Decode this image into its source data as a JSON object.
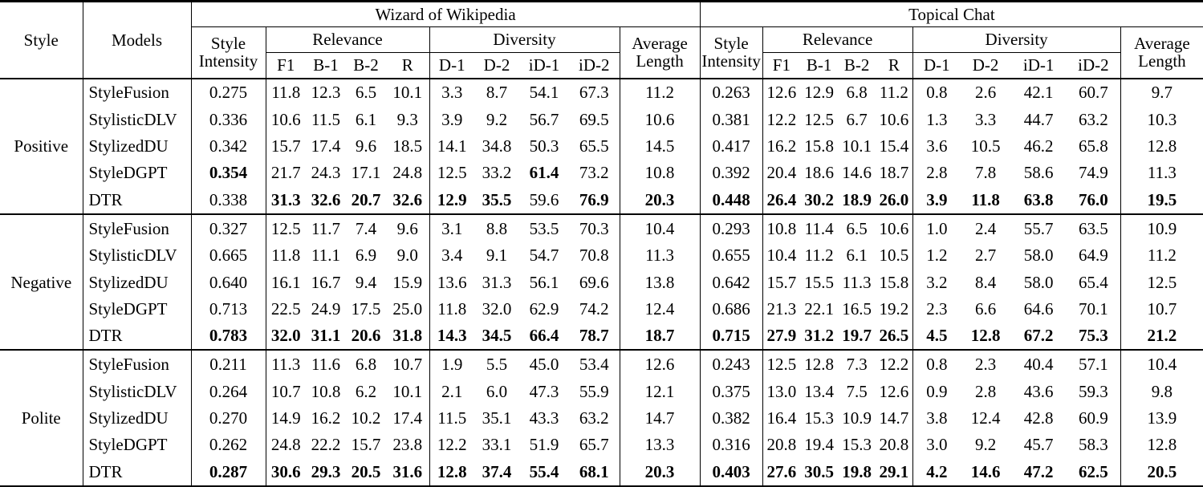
{
  "table": {
    "header": {
      "style": "Style",
      "models": "Models",
      "sections": [
        {
          "title": "Wizard of Wikipedia",
          "style_intensity": "Style\nIntensity",
          "relevance": "Relevance",
          "diversity": "Diversity",
          "average_length": "Average\nLength",
          "relevance_metrics": [
            "F1",
            "B-1",
            "B-2",
            "R"
          ],
          "diversity_metrics": [
            "D-1",
            "D-2",
            "iD-1",
            "iD-2"
          ]
        },
        {
          "title": "Topical Chat",
          "style_intensity": "Style\nIntensity",
          "relevance": "Relevance",
          "diversity": "Diversity",
          "average_length": "Average\nLength",
          "relevance_metrics": [
            "F1",
            "B-1",
            "B-2",
            "R"
          ],
          "diversity_metrics": [
            "D-1",
            "D-2",
            "iD-1",
            "iD-2"
          ]
        }
      ]
    },
    "groups": [
      {
        "style": "Positive",
        "rows": [
          {
            "model": "StyleFusion",
            "values": [
              "0.275",
              "11.8",
              "12.3",
              "6.5",
              "10.1",
              "3.3",
              "8.7",
              "54.1",
              "67.3",
              "11.2",
              "0.263",
              "12.6",
              "12.9",
              "6.8",
              "11.2",
              "0.8",
              "2.6",
              "42.1",
              "60.7",
              "9.7"
            ],
            "bold": []
          },
          {
            "model": "StylisticDLV",
            "values": [
              "0.336",
              "10.6",
              "11.5",
              "6.1",
              "9.3",
              "3.9",
              "9.2",
              "56.7",
              "69.5",
              "10.6",
              "0.381",
              "12.2",
              "12.5",
              "6.7",
              "10.6",
              "1.3",
              "3.3",
              "44.7",
              "63.2",
              "10.3"
            ],
            "bold": []
          },
          {
            "model": "StylizedDU",
            "values": [
              "0.342",
              "15.7",
              "17.4",
              "9.6",
              "18.5",
              "14.1",
              "34.8",
              "50.3",
              "65.5",
              "14.5",
              "0.417",
              "16.2",
              "15.8",
              "10.1",
              "15.4",
              "3.6",
              "10.5",
              "46.2",
              "65.8",
              "12.8"
            ],
            "bold": []
          },
          {
            "model": "StyleDGPT",
            "values": [
              "0.354",
              "21.7",
              "24.3",
              "17.1",
              "24.8",
              "12.5",
              "33.2",
              "61.4",
              "73.2",
              "10.8",
              "0.392",
              "20.4",
              "18.6",
              "14.6",
              "18.7",
              "2.8",
              "7.8",
              "58.6",
              "74.9",
              "11.3"
            ],
            "bold": [
              0,
              7
            ]
          },
          {
            "model": "DTR",
            "values": [
              "0.338",
              "31.3",
              "32.6",
              "20.7",
              "32.6",
              "12.9",
              "35.5",
              "59.6",
              "76.9",
              "20.3",
              "0.448",
              "26.4",
              "30.2",
              "18.9",
              "26.0",
              "3.9",
              "11.8",
              "63.8",
              "76.0",
              "19.5"
            ],
            "bold": [
              1,
              2,
              3,
              4,
              5,
              6,
              8,
              9,
              10,
              11,
              12,
              13,
              14,
              15,
              16,
              17,
              18,
              19
            ]
          }
        ]
      },
      {
        "style": "Negative",
        "rows": [
          {
            "model": "StyleFusion",
            "values": [
              "0.327",
              "12.5",
              "11.7",
              "7.4",
              "9.6",
              "3.1",
              "8.8",
              "53.5",
              "70.3",
              "10.4",
              "0.293",
              "10.8",
              "11.4",
              "6.5",
              "10.6",
              "1.0",
              "2.4",
              "55.7",
              "63.5",
              "10.9"
            ],
            "bold": []
          },
          {
            "model": "StylisticDLV",
            "values": [
              "0.665",
              "11.8",
              "11.1",
              "6.9",
              "9.0",
              "3.4",
              "9.1",
              "54.7",
              "70.8",
              "11.3",
              "0.655",
              "10.4",
              "11.2",
              "6.1",
              "10.5",
              "1.2",
              "2.7",
              "58.0",
              "64.9",
              "11.2"
            ],
            "bold": []
          },
          {
            "model": "StylizedDU",
            "values": [
              "0.640",
              "16.1",
              "16.7",
              "9.4",
              "15.9",
              "13.6",
              "31.3",
              "56.1",
              "69.6",
              "13.8",
              "0.642",
              "15.7",
              "15.5",
              "11.3",
              "15.8",
              "3.2",
              "8.4",
              "58.0",
              "65.4",
              "12.5"
            ],
            "bold": []
          },
          {
            "model": "StyleDGPT",
            "values": [
              "0.713",
              "22.5",
              "24.9",
              "17.5",
              "25.0",
              "11.8",
              "32.0",
              "62.9",
              "74.2",
              "12.4",
              "0.686",
              "21.3",
              "22.1",
              "16.5",
              "19.2",
              "2.3",
              "6.6",
              "64.6",
              "70.1",
              "10.7"
            ],
            "bold": []
          },
          {
            "model": "DTR",
            "values": [
              "0.783",
              "32.0",
              "31.1",
              "20.6",
              "31.8",
              "14.3",
              "34.5",
              "66.4",
              "78.7",
              "18.7",
              "0.715",
              "27.9",
              "31.2",
              "19.7",
              "26.5",
              "4.5",
              "12.8",
              "67.2",
              "75.3",
              "21.2"
            ],
            "bold": [
              0,
              1,
              2,
              3,
              4,
              5,
              6,
              7,
              8,
              9,
              10,
              11,
              12,
              13,
              14,
              15,
              16,
              17,
              18,
              19
            ]
          }
        ]
      },
      {
        "style": "Polite",
        "rows": [
          {
            "model": "StyleFusion",
            "values": [
              "0.211",
              "11.3",
              "11.6",
              "6.8",
              "10.7",
              "1.9",
              "5.5",
              "45.0",
              "53.4",
              "12.6",
              "0.243",
              "12.5",
              "12.8",
              "7.3",
              "12.2",
              "0.8",
              "2.3",
              "40.4",
              "57.1",
              "10.4"
            ],
            "bold": []
          },
          {
            "model": "StylisticDLV",
            "values": [
              "0.264",
              "10.7",
              "10.8",
              "6.2",
              "10.1",
              "2.1",
              "6.0",
              "47.3",
              "55.9",
              "12.1",
              "0.375",
              "13.0",
              "13.4",
              "7.5",
              "12.6",
              "0.9",
              "2.8",
              "43.6",
              "59.3",
              "9.8"
            ],
            "bold": []
          },
          {
            "model": "StylizedDU",
            "values": [
              "0.270",
              "14.9",
              "16.2",
              "10.2",
              "17.4",
              "11.5",
              "35.1",
              "43.3",
              "63.2",
              "14.7",
              "0.382",
              "16.4",
              "15.3",
              "10.9",
              "14.7",
              "3.8",
              "12.4",
              "42.8",
              "60.9",
              "13.9"
            ],
            "bold": []
          },
          {
            "model": "StyleDGPT",
            "values": [
              "0.262",
              "24.8",
              "22.2",
              "15.7",
              "23.8",
              "12.2",
              "33.1",
              "51.9",
              "65.7",
              "13.3",
              "0.316",
              "20.8",
              "19.4",
              "15.3",
              "20.8",
              "3.0",
              "9.2",
              "45.7",
              "58.3",
              "12.8"
            ],
            "bold": []
          },
          {
            "model": "DTR",
            "values": [
              "0.287",
              "30.6",
              "29.3",
              "20.5",
              "31.6",
              "12.8",
              "37.4",
              "55.4",
              "68.1",
              "20.3",
              "0.403",
              "27.6",
              "30.5",
              "19.8",
              "29.1",
              "4.2",
              "14.6",
              "47.2",
              "62.5",
              "20.5"
            ],
            "bold": [
              0,
              1,
              2,
              3,
              4,
              5,
              6,
              7,
              8,
              9,
              10,
              11,
              12,
              13,
              14,
              15,
              16,
              17,
              18,
              19
            ]
          }
        ]
      }
    ]
  }
}
